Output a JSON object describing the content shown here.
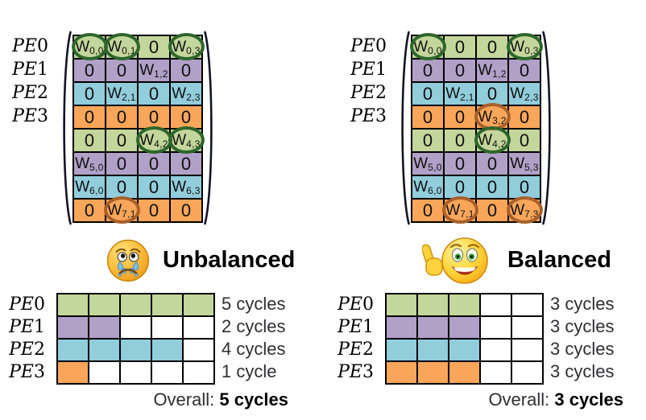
{
  "palette": {
    "green": "#c3d69b",
    "purple": "#b1a0c7",
    "blue": "#92cddc",
    "orange": "#f9a65a",
    "circle_green": "#2d662a",
    "circle_orange": "#a8602a"
  },
  "matrices": [
    {
      "name": "unbalanced-weight-matrix",
      "pe_labels": [
        "PE0",
        "PE1",
        "PE2",
        "PE3"
      ],
      "rows": [
        {
          "color": "green",
          "cells": [
            {
              "v": "W",
              "sub": "0,0",
              "circle": "green"
            },
            {
              "v": "W",
              "sub": "0,1",
              "circle": "green"
            },
            {
              "v": "0"
            },
            {
              "v": "W",
              "sub": "0,3",
              "circle": "green"
            }
          ]
        },
        {
          "color": "purple",
          "cells": [
            {
              "v": "0"
            },
            {
              "v": "0"
            },
            {
              "v": "W",
              "sub": "1,2"
            },
            {
              "v": "0"
            }
          ]
        },
        {
          "color": "blue",
          "cells": [
            {
              "v": "0"
            },
            {
              "v": "W",
              "sub": "2,1"
            },
            {
              "v": "0"
            },
            {
              "v": "W",
              "sub": "2,3"
            }
          ]
        },
        {
          "color": "orange",
          "cells": [
            {
              "v": "0"
            },
            {
              "v": "0"
            },
            {
              "v": "0"
            },
            {
              "v": "0"
            }
          ]
        },
        {
          "color": "green",
          "cells": [
            {
              "v": "0"
            },
            {
              "v": "0"
            },
            {
              "v": "W",
              "sub": "4,2",
              "circle": "green"
            },
            {
              "v": "W",
              "sub": "4,3",
              "circle": "green"
            }
          ]
        },
        {
          "color": "purple",
          "cells": [
            {
              "v": "W",
              "sub": "5,0"
            },
            {
              "v": "0"
            },
            {
              "v": "0"
            },
            {
              "v": "0"
            }
          ]
        },
        {
          "color": "blue",
          "cells": [
            {
              "v": "W",
              "sub": "6,0"
            },
            {
              "v": "0"
            },
            {
              "v": "0"
            },
            {
              "v": "W",
              "sub": "6,3"
            }
          ]
        },
        {
          "color": "orange",
          "cells": [
            {
              "v": "0"
            },
            {
              "v": "W",
              "sub": "7,1",
              "circle": "orange"
            },
            {
              "v": "0"
            },
            {
              "v": "0"
            }
          ]
        }
      ]
    },
    {
      "name": "balanced-weight-matrix",
      "pe_labels": [
        "PE0",
        "PE1",
        "PE2",
        "PE3"
      ],
      "rows": [
        {
          "color": "green",
          "cells": [
            {
              "v": "W",
              "sub": "0,0",
              "circle": "green"
            },
            {
              "v": "0"
            },
            {
              "v": "0"
            },
            {
              "v": "W",
              "sub": "0,3",
              "circle": "green"
            }
          ]
        },
        {
          "color": "purple",
          "cells": [
            {
              "v": "0"
            },
            {
              "v": "0"
            },
            {
              "v": "W",
              "sub": "1,2"
            },
            {
              "v": "0"
            }
          ]
        },
        {
          "color": "blue",
          "cells": [
            {
              "v": "0"
            },
            {
              "v": "W",
              "sub": "2,1"
            },
            {
              "v": "0"
            },
            {
              "v": "W",
              "sub": "2,3"
            }
          ]
        },
        {
          "color": "orange",
          "cells": [
            {
              "v": "0"
            },
            {
              "v": "0"
            },
            {
              "v": "W",
              "sub": "3,2",
              "circle": "orange"
            },
            {
              "v": "0"
            }
          ]
        },
        {
          "color": "green",
          "cells": [
            {
              "v": "0"
            },
            {
              "v": "0"
            },
            {
              "v": "W",
              "sub": "4,2",
              "circle": "green"
            },
            {
              "v": "0"
            }
          ]
        },
        {
          "color": "purple",
          "cells": [
            {
              "v": "W",
              "sub": "5,0"
            },
            {
              "v": "0"
            },
            {
              "v": "0"
            },
            {
              "v": "W",
              "sub": "5,3"
            }
          ]
        },
        {
          "color": "blue",
          "cells": [
            {
              "v": "W",
              "sub": "6,0"
            },
            {
              "v": "0"
            },
            {
              "v": "0"
            },
            {
              "v": "0"
            }
          ]
        },
        {
          "color": "orange",
          "cells": [
            {
              "v": "0"
            },
            {
              "v": "W",
              "sub": "7,1",
              "circle": "orange"
            },
            {
              "v": "0"
            },
            {
              "v": "W",
              "sub": "7,3",
              "circle": "orange"
            }
          ]
        }
      ]
    }
  ],
  "sections": [
    {
      "icon": "crying-face-emoji",
      "title": "Unbalanced",
      "chart": {
        "columns": 5,
        "rows": [
          {
            "label": "PE0",
            "color": "green",
            "filled": 5,
            "cycles_text": "5 cycles"
          },
          {
            "label": "PE1",
            "color": "purple",
            "filled": 2,
            "cycles_text": "2 cycles"
          },
          {
            "label": "PE2",
            "color": "blue",
            "filled": 4,
            "cycles_text": "4 cycles"
          },
          {
            "label": "PE3",
            "color": "orange",
            "filled": 1,
            "cycles_text": "1 cycle"
          }
        ],
        "overall_label": "Overall:",
        "overall_value": "5 cycles"
      }
    },
    {
      "icon": "thumbs-up-face-emoji",
      "title": "Balanced",
      "chart": {
        "columns": 5,
        "rows": [
          {
            "label": "PE0",
            "color": "green",
            "filled": 3,
            "cycles_text": "3 cycles"
          },
          {
            "label": "PE1",
            "color": "purple",
            "filled": 3,
            "cycles_text": "3 cycles"
          },
          {
            "label": "PE2",
            "color": "blue",
            "filled": 3,
            "cycles_text": "3 cycles"
          },
          {
            "label": "PE3",
            "color": "orange",
            "filled": 3,
            "cycles_text": "3 cycles"
          }
        ],
        "overall_label": "Overall:",
        "overall_value": "3 cycles"
      }
    }
  ]
}
